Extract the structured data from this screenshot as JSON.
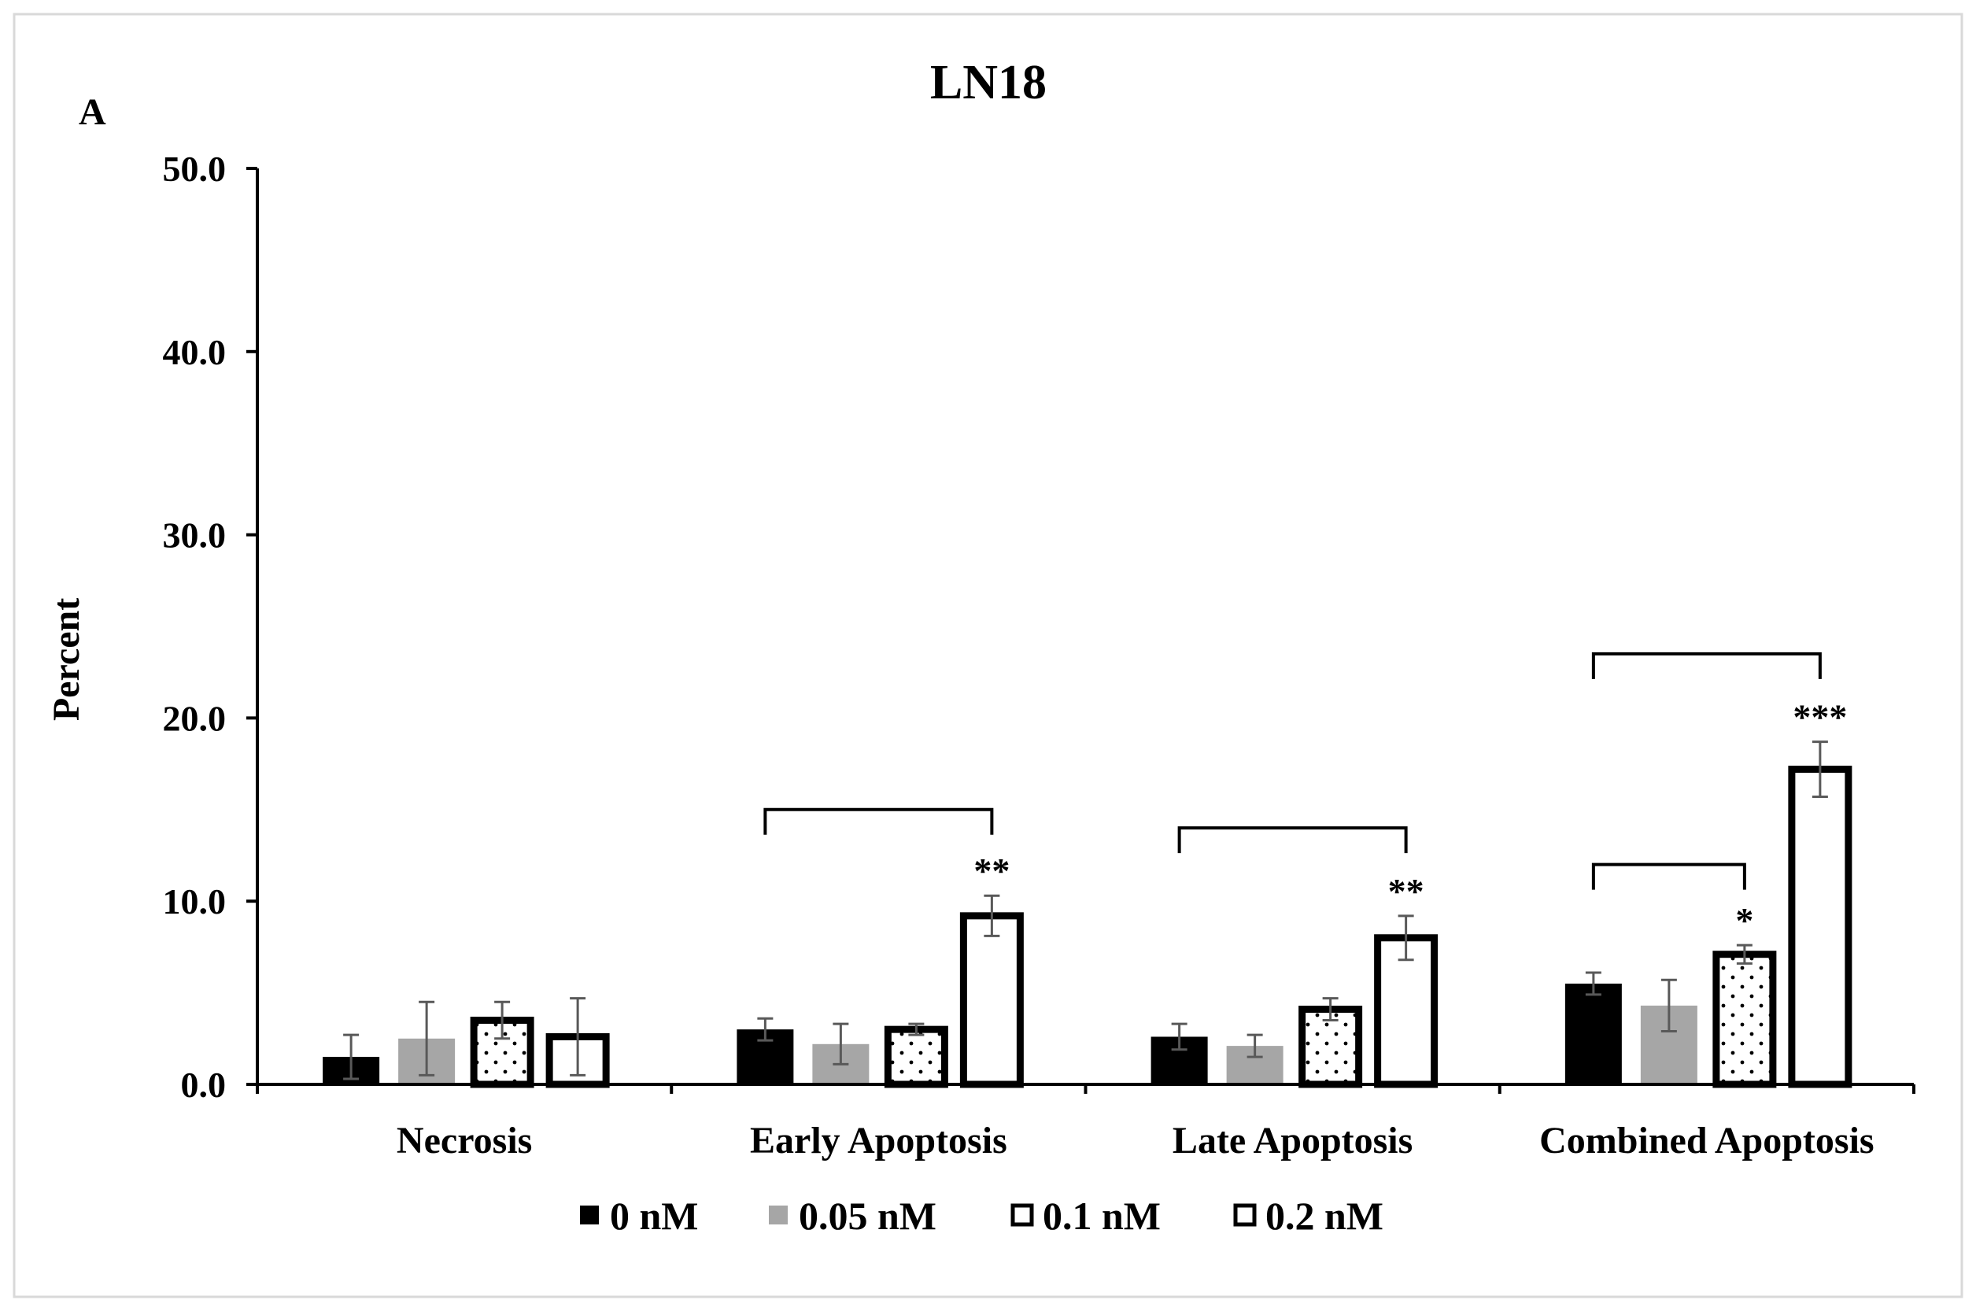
{
  "panel_label": "A",
  "chart_data": {
    "type": "bar",
    "title": "LN18",
    "xlabel": "",
    "ylabel": "Percent",
    "ylim": [
      0,
      50
    ],
    "yticks": [
      "0.0",
      "10.0",
      "20.0",
      "30.0",
      "40.0",
      "50.0"
    ],
    "grid": false,
    "legend_position": "bottom",
    "categories": [
      "Necrosis",
      "Early Apoptosis",
      "Late Apoptosis",
      "Combined Apoptosis"
    ],
    "series": [
      {
        "name": "0 nM",
        "values": [
          1.5,
          3.0,
          2.6,
          5.5
        ],
        "errors": [
          1.2,
          0.6,
          0.7,
          0.6
        ],
        "fill": "#000000",
        "pattern": "solid"
      },
      {
        "name": "0.05 nM",
        "values": [
          2.5,
          2.2,
          2.1,
          4.3
        ],
        "errors": [
          2.0,
          1.1,
          0.6,
          1.4
        ],
        "fill": "#a6a6a6",
        "pattern": "solid"
      },
      {
        "name": "0.1 nM",
        "values": [
          3.5,
          3.0,
          4.1,
          7.1
        ],
        "errors": [
          1.0,
          0.3,
          0.6,
          0.5
        ],
        "fill": "#ffffff",
        "pattern": "dotted"
      },
      {
        "name": "0.2 nM",
        "values": [
          2.6,
          9.2,
          8.0,
          17.2
        ],
        "errors": [
          2.1,
          1.1,
          1.2,
          1.5
        ],
        "fill": "#ffffff",
        "pattern": "empty"
      }
    ],
    "annotations": [
      {
        "category": 1,
        "from": 0,
        "to": 3,
        "level": 15.0,
        "label": "**"
      },
      {
        "category": 2,
        "from": 0,
        "to": 3,
        "level": 14.0,
        "label": "**"
      },
      {
        "category": 3,
        "from": 0,
        "to": 2,
        "level": 12.0,
        "label": "*"
      },
      {
        "category": 3,
        "from": 0,
        "to": 3,
        "level": 23.5,
        "label": "***"
      }
    ],
    "colors": {
      "axis": "#000000",
      "error_bar": "#595959",
      "frame": "#d9d9d9"
    }
  }
}
